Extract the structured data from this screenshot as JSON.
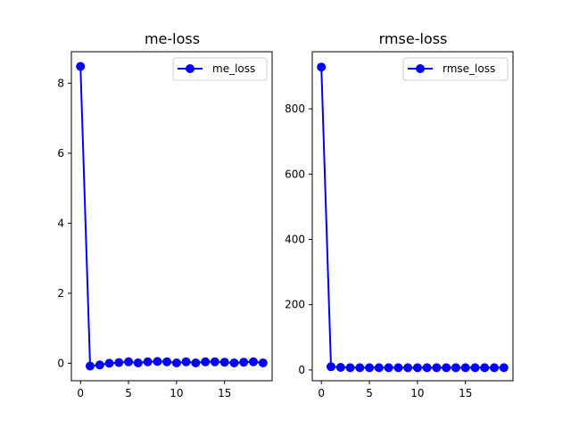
{
  "chart_data": [
    {
      "type": "line",
      "title": "me-loss",
      "xlabel": "",
      "ylabel": "",
      "xlim": [
        -0.95,
        19.95
      ],
      "ylim": [
        -0.5,
        8.9
      ],
      "xticks": [
        0,
        5,
        10,
        15
      ],
      "yticks": [
        0,
        2,
        4,
        6,
        8
      ],
      "legend": "top-right",
      "grid": false,
      "series": [
        {
          "name": "me_loss",
          "color": "#0000ff",
          "marker": "circle",
          "x": [
            0,
            1,
            2,
            3,
            4,
            5,
            6,
            7,
            8,
            9,
            10,
            11,
            12,
            13,
            14,
            15,
            16,
            17,
            18,
            19
          ],
          "y": [
            8.48,
            -0.08,
            -0.05,
            0.0,
            0.02,
            0.04,
            0.01,
            0.04,
            0.05,
            0.04,
            0.01,
            0.04,
            0.01,
            0.04,
            0.04,
            0.03,
            0.01,
            0.03,
            0.04,
            0.01
          ]
        }
      ]
    },
    {
      "type": "line",
      "title": "rmse-loss",
      "xlabel": "",
      "ylabel": "",
      "xlim": [
        -0.95,
        19.95
      ],
      "ylim": [
        -33,
        975
      ],
      "xticks": [
        0,
        5,
        10,
        15
      ],
      "yticks": [
        0,
        200,
        400,
        600,
        800
      ],
      "legend": "top-right",
      "grid": false,
      "series": [
        {
          "name": "rmse_loss",
          "color": "#0000ff",
          "marker": "circle",
          "x": [
            0,
            1,
            2,
            3,
            4,
            5,
            6,
            7,
            8,
            9,
            10,
            11,
            12,
            13,
            14,
            15,
            16,
            17,
            18,
            19
          ],
          "y": [
            928,
            10,
            8,
            7,
            7,
            7,
            7,
            7,
            7,
            7,
            7,
            7,
            7,
            7,
            7,
            7,
            7,
            7,
            7,
            7
          ]
        }
      ]
    }
  ]
}
